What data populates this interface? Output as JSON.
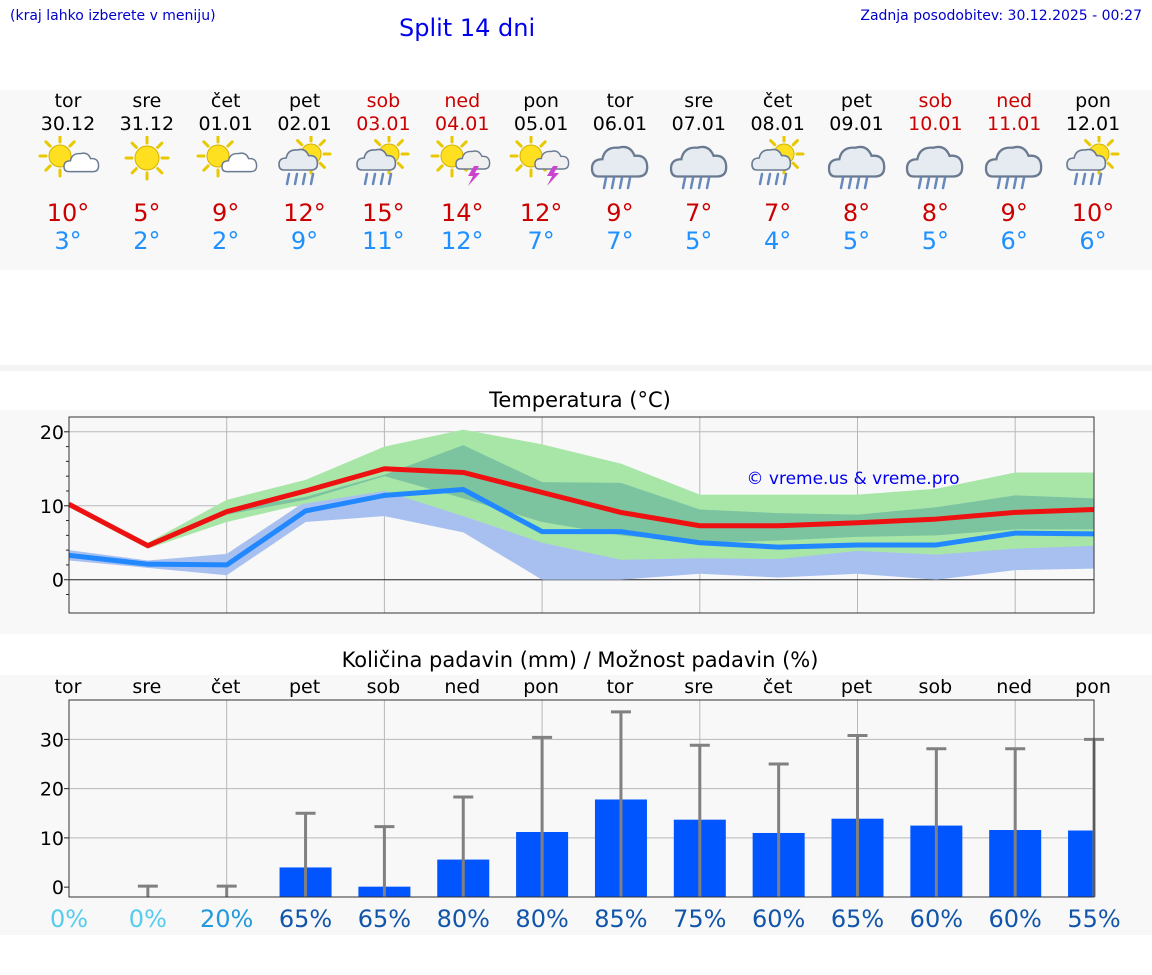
{
  "header": {
    "hint": "(kraj lahko izberete v meniju)",
    "title": "Split 14 dni",
    "updated": "Zadnja posodobitev: 30.12.2025 - 00:27"
  },
  "days": [
    {
      "name": "tor",
      "date": "30.12",
      "weekend": false,
      "icon": "sun-cloud-icon",
      "tmax": "10°",
      "tmin": "3°"
    },
    {
      "name": "sre",
      "date": "31.12",
      "weekend": false,
      "icon": "sun-icon",
      "tmax": "5°",
      "tmin": "2°"
    },
    {
      "name": "čet",
      "date": "01.01",
      "weekend": false,
      "icon": "sun-cloud-icon",
      "tmax": "9°",
      "tmin": "2°"
    },
    {
      "name": "pet",
      "date": "02.01",
      "weekend": false,
      "icon": "sun-rain-icon",
      "tmax": "12°",
      "tmin": "9°"
    },
    {
      "name": "sob",
      "date": "03.01",
      "weekend": true,
      "icon": "sun-rain-icon",
      "tmax": "15°",
      "tmin": "11°"
    },
    {
      "name": "ned",
      "date": "04.01",
      "weekend": true,
      "icon": "sun-thunder-icon",
      "tmax": "14°",
      "tmin": "12°"
    },
    {
      "name": "pon",
      "date": "05.01",
      "weekend": false,
      "icon": "sun-thunder-icon",
      "tmax": "12°",
      "tmin": "7°"
    },
    {
      "name": "tor",
      "date": "06.01",
      "weekend": false,
      "icon": "cloud-rain-icon",
      "tmax": "9°",
      "tmin": "7°"
    },
    {
      "name": "sre",
      "date": "07.01",
      "weekend": false,
      "icon": "cloud-rain-icon",
      "tmax": "7°",
      "tmin": "5°"
    },
    {
      "name": "čet",
      "date": "08.01",
      "weekend": false,
      "icon": "sun-rain-icon",
      "tmax": "7°",
      "tmin": "4°"
    },
    {
      "name": "pet",
      "date": "09.01",
      "weekend": false,
      "icon": "cloud-rain-icon",
      "tmax": "8°",
      "tmin": "5°"
    },
    {
      "name": "sob",
      "date": "10.01",
      "weekend": true,
      "icon": "cloud-rain-icon",
      "tmax": "8°",
      "tmin": "5°"
    },
    {
      "name": "ned",
      "date": "11.01",
      "weekend": true,
      "icon": "cloud-rain-icon",
      "tmax": "9°",
      "tmin": "6°"
    },
    {
      "name": "pon",
      "date": "12.01",
      "weekend": false,
      "icon": "sun-rain-icon",
      "tmax": "10°",
      "tmin": "6°"
    }
  ],
  "colors": {
    "tmax_line": "#ee1111",
    "tmin_line": "#2288ff",
    "band_outer": "#a8e6a8",
    "band_inner": "#7cc4a0",
    "band_blue": "#a8c0f0",
    "precip_bar": "#0055ff",
    "whisker": "#808080"
  },
  "chart_data": [
    {
      "type": "line",
      "title": "Temperatura (°C)",
      "watermark": "© vreme.us & vreme.pro",
      "categories": [
        "30.12",
        "31.12",
        "01.01",
        "02.01",
        "03.01",
        "04.01",
        "05.01",
        "06.01",
        "07.01",
        "08.01",
        "09.01",
        "10.01",
        "11.01",
        "12.01"
      ],
      "ylim": [
        -4.5,
        22
      ],
      "yticks": [
        0,
        10,
        20
      ],
      "series": [
        {
          "name": "max",
          "values": [
            10.2,
            4.6,
            9.2,
            12.0,
            15.0,
            14.5,
            11.8,
            9.1,
            7.3,
            7.3,
            7.7,
            8.2,
            9.1,
            9.5
          ]
        },
        {
          "name": "min",
          "values": [
            3.3,
            2.1,
            2.0,
            9.3,
            11.4,
            12.2,
            6.5,
            6.5,
            5.0,
            4.4,
            4.7,
            4.7,
            6.3,
            6.2
          ]
        },
        {
          "name": "max_range_high",
          "values": [
            10.5,
            5.0,
            10.8,
            13.5,
            18.0,
            20.3,
            18.3,
            15.7,
            11.5,
            11.5,
            11.5,
            12.3,
            14.5,
            14.5
          ]
        },
        {
          "name": "max_range_low",
          "values": [
            9.8,
            4.2,
            7.8,
            10.3,
            12.0,
            8.6,
            5.0,
            2.7,
            2.9,
            2.8,
            3.9,
            3.4,
            4.2,
            4.6
          ]
        },
        {
          "name": "inner_range_high",
          "values": [
            10.3,
            4.8,
            9.5,
            11.2,
            14.2,
            18.2,
            13.2,
            13.1,
            9.5,
            9.0,
            8.8,
            9.8,
            11.4,
            11.0
          ]
        },
        {
          "name": "inner_range_low",
          "values": [
            10.0,
            4.4,
            8.8,
            10.8,
            14.0,
            11.0,
            7.8,
            6.0,
            5.0,
            5.3,
            5.8,
            6.0,
            6.8,
            6.8
          ]
        },
        {
          "name": "min_range_high",
          "values": [
            4.0,
            2.6,
            3.5,
            10.6,
            12.3,
            13.5,
            8.0,
            8.0,
            7.5,
            7.2,
            7.8,
            8.4,
            9.3,
            9.5
          ]
        },
        {
          "name": "min_range_low",
          "values": [
            2.6,
            1.6,
            0.6,
            7.8,
            8.6,
            6.4,
            0.0,
            0.0,
            0.8,
            0.3,
            0.8,
            0.0,
            1.3,
            1.5
          ]
        }
      ]
    },
    {
      "type": "bar",
      "title": "Količina padavin (mm) / Možnost padavin (%)",
      "day_labels": [
        "tor",
        "sre",
        "čet",
        "pet",
        "sob",
        "ned",
        "pon",
        "tor",
        "sre",
        "čet",
        "pet",
        "sob",
        "ned",
        "pon"
      ],
      "ylim": [
        -2,
        38
      ],
      "yticks": [
        0,
        10,
        20,
        30
      ],
      "values": [
        0,
        0,
        0,
        4,
        0.1,
        5.6,
        11.2,
        17.8,
        13.7,
        11.0,
        13.9,
        12.5,
        11.6,
        11.5
      ],
      "whisker_high": [
        0,
        0.2,
        0.2,
        15.0,
        12.3,
        18.3,
        30.4,
        35.6,
        28.8,
        25.0,
        30.8,
        28.1,
        28.1,
        30.0
      ],
      "probability": [
        "0%",
        "0%",
        "20%",
        "65%",
        "65%",
        "80%",
        "80%",
        "85%",
        "75%",
        "60%",
        "65%",
        "60%",
        "60%",
        "55%"
      ],
      "probability_colors": [
        "#55ccee",
        "#55ccee",
        "#2299dd",
        "#1155aa",
        "#1155aa",
        "#1155aa",
        "#1155aa",
        "#1155aa",
        "#1155aa",
        "#1155aa",
        "#1155aa",
        "#1155aa",
        "#1155aa",
        "#1155aa"
      ]
    }
  ]
}
